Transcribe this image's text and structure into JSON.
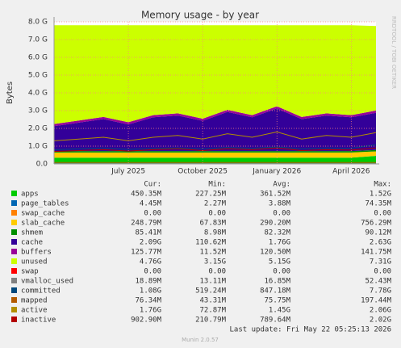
{
  "chart_data": {
    "type": "area",
    "title": "Memory usage - by year",
    "y_label": "Bytes",
    "watermark": "RRDTOOL / TOBI OETIKER",
    "x": [
      "2025-04",
      "2025-05",
      "2025-06",
      "2025-07",
      "2025-08",
      "2025-09",
      "2025-10",
      "2025-11",
      "2025-12",
      "2026-01",
      "2026-02",
      "2026-03",
      "2026-04",
      "2026-05"
    ],
    "xlim": [
      "2025-04",
      "2026-05"
    ],
    "xticks": [
      {
        "value": "2025-07",
        "label": "July 2025"
      },
      {
        "value": "2025-10",
        "label": "October 2025"
      },
      {
        "value": "2026-01",
        "label": "January 2026"
      },
      {
        "value": "2026-04",
        "label": "April 2026"
      }
    ],
    "ylim": [
      0,
      8
    ],
    "yticks": [
      {
        "value": 0,
        "label": "0.0"
      },
      {
        "value": 1,
        "label": "1.0 G"
      },
      {
        "value": 2,
        "label": "2.0 G"
      },
      {
        "value": 3,
        "label": "3.0 G"
      },
      {
        "value": 4,
        "label": "4.0 G"
      },
      {
        "value": 5,
        "label": "5.0 G"
      },
      {
        "value": 6,
        "label": "6.0 G"
      },
      {
        "value": 7,
        "label": "7.0 G"
      },
      {
        "value": 8,
        "label": "8.0 G"
      }
    ],
    "grid": true,
    "stat_headers": [
      "Cur:",
      "Min:",
      "Avg:",
      "Max:"
    ],
    "series": [
      {
        "name": "apps",
        "color": "#00cc00",
        "stacked": true,
        "values": [
          0.35,
          0.35,
          0.35,
          0.35,
          0.35,
          0.35,
          0.35,
          0.35,
          0.35,
          0.35,
          0.35,
          0.35,
          0.35,
          0.45
        ],
        "stats": [
          "450.35M",
          "227.25M",
          "361.52M",
          "1.52G"
        ]
      },
      {
        "name": "page_tables",
        "color": "#0066b3",
        "stacked": true,
        "values": [
          0.004,
          0.004,
          0.004,
          0.004,
          0.004,
          0.004,
          0.004,
          0.004,
          0.004,
          0.004,
          0.004,
          0.004,
          0.004,
          0.004
        ],
        "stats": [
          "4.45M",
          "2.27M",
          "3.88M",
          "74.35M"
        ]
      },
      {
        "name": "swap_cache",
        "color": "#ff8000",
        "stacked": true,
        "values": [
          0,
          0,
          0,
          0,
          0,
          0,
          0,
          0,
          0,
          0,
          0,
          0,
          0,
          0
        ],
        "stats": [
          "0.00",
          "0.00",
          "0.00",
          "0.00"
        ]
      },
      {
        "name": "slab_cache",
        "color": "#ffcc00",
        "stacked": true,
        "values": [
          0.29,
          0.29,
          0.29,
          0.29,
          0.29,
          0.29,
          0.29,
          0.29,
          0.29,
          0.29,
          0.29,
          0.29,
          0.29,
          0.25
        ],
        "stats": [
          "248.79M",
          "67.83M",
          "290.20M",
          "756.29M"
        ]
      },
      {
        "name": "shmem",
        "color": "#008f00",
        "stacked": true,
        "values": [
          0.08,
          0.08,
          0.08,
          0.08,
          0.08,
          0.08,
          0.08,
          0.08,
          0.08,
          0.08,
          0.08,
          0.08,
          0.08,
          0.08
        ],
        "stats": [
          "85.41M",
          "8.98M",
          "82.32M",
          "90.12M"
        ]
      },
      {
        "name": "cache",
        "color": "#330099",
        "stacked": true,
        "values": [
          1.4,
          1.6,
          1.8,
          1.5,
          1.9,
          2.0,
          1.7,
          2.2,
          1.9,
          2.4,
          1.8,
          2.0,
          1.9,
          2.09
        ],
        "stats": [
          "2.09G",
          "110.62M",
          "1.76G",
          "2.63G"
        ]
      },
      {
        "name": "buffers",
        "color": "#990099",
        "stacked": true,
        "values": [
          0.12,
          0.12,
          0.12,
          0.12,
          0.12,
          0.12,
          0.12,
          0.12,
          0.12,
          0.12,
          0.12,
          0.12,
          0.12,
          0.13
        ],
        "stats": [
          "125.77M",
          "11.52M",
          "120.50M",
          "141.75M"
        ]
      },
      {
        "name": "unused",
        "color": "#ccff00",
        "stacked": true,
        "values": [
          5.56,
          5.36,
          5.16,
          5.46,
          5.06,
          4.96,
          5.26,
          4.76,
          5.06,
          4.56,
          5.16,
          4.96,
          5.06,
          4.76
        ],
        "stats": [
          "4.76G",
          "3.15G",
          "5.15G",
          "7.31G"
        ]
      },
      {
        "name": "swap",
        "color": "#ff0000",
        "stacked": false,
        "values": [
          0,
          0,
          0,
          0,
          0,
          0,
          0,
          0,
          0,
          0,
          0,
          0,
          0,
          0
        ],
        "stats": [
          "0.00",
          "0.00",
          "0.00",
          "0.00"
        ]
      },
      {
        "name": "vmalloc_used",
        "color": "#808080",
        "stacked": false,
        "values": [
          0.017,
          0.017,
          0.017,
          0.017,
          0.017,
          0.017,
          0.017,
          0.017,
          0.017,
          0.017,
          0.017,
          0.017,
          0.017,
          0.019
        ],
        "stats": [
          "18.89M",
          "13.11M",
          "16.85M",
          "52.43M"
        ]
      },
      {
        "name": "committed",
        "color": "#00487d",
        "stacked": false,
        "values": [
          0.8,
          0.85,
          0.9,
          0.82,
          0.88,
          0.9,
          0.85,
          0.92,
          0.88,
          0.95,
          0.85,
          0.9,
          0.88,
          1.08
        ],
        "stats": [
          "1.08G",
          "519.24M",
          "847.18M",
          "7.78G"
        ]
      },
      {
        "name": "mapped",
        "color": "#b35a00",
        "stacked": false,
        "values": [
          0.08,
          0.08,
          0.08,
          0.08,
          0.08,
          0.08,
          0.08,
          0.08,
          0.08,
          0.08,
          0.08,
          0.08,
          0.08,
          0.08
        ],
        "stats": [
          "76.34M",
          "43.31M",
          "75.75M",
          "197.44M"
        ]
      },
      {
        "name": "active",
        "color": "#b38f00",
        "stacked": false,
        "values": [
          1.3,
          1.4,
          1.5,
          1.3,
          1.5,
          1.6,
          1.4,
          1.7,
          1.5,
          1.8,
          1.4,
          1.6,
          1.5,
          1.76
        ],
        "stats": [
          "1.76G",
          "72.87M",
          "1.45G",
          "2.06G"
        ]
      },
      {
        "name": "inactive",
        "color": "#b30000",
        "stacked": false,
        "values": [
          0.7,
          0.75,
          0.8,
          0.72,
          0.8,
          0.85,
          0.75,
          0.85,
          0.8,
          0.9,
          0.75,
          0.8,
          0.78,
          0.9
        ],
        "stats": [
          "902.90M",
          "210.79M",
          "789.64M",
          "2.02G"
        ]
      }
    ],
    "last_update": "Last update: Fri May 22 05:25:13 2026",
    "footer": "Munin 2.0.57"
  }
}
